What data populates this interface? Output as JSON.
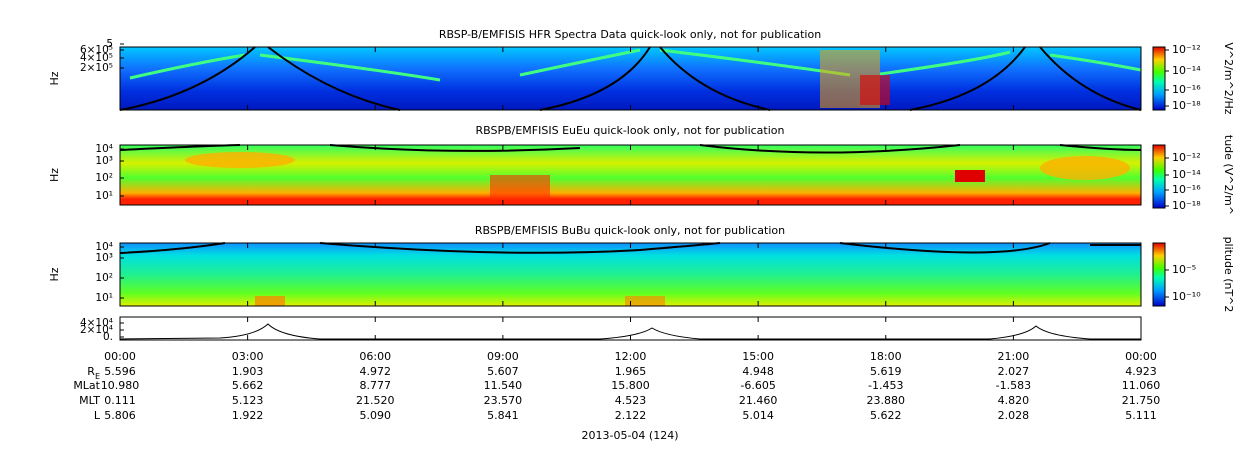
{
  "panels": [
    {
      "title": "RBSP-B/EMFISIS  HFR Spectra Data quick-look only, not for publication",
      "y_label": "Hz",
      "yticks": [
        "5",
        "6×10⁵",
        "4×10⁵",
        "2×10⁵"
      ],
      "colorbar_label": "V^2/m^2/Hz",
      "colorbar_ticks": [
        "10⁻¹²",
        "10⁻¹⁴",
        "10⁻¹⁶",
        "10⁻¹⁸"
      ]
    },
    {
      "title": "RBSPB/EMFISIS  EuEu quick-look only, not for publication",
      "y_label": "Hz",
      "yticks": [
        "10⁴",
        "10³",
        "10²",
        "10¹"
      ],
      "colorbar_label": "tude (V^2/m^",
      "colorbar_ticks": [
        "10⁻¹²",
        "10⁻¹⁴",
        "10⁻¹⁶",
        "10⁻¹⁸"
      ]
    },
    {
      "title": "RBSPB/EMFISIS  BuBu quick-look only, not for publication",
      "y_label": "Hz",
      "yticks": [
        "10⁴",
        "10³",
        "10²",
        "10¹"
      ],
      "colorbar_label": "plitude (nT^2",
      "colorbar_ticks": [
        "10⁻⁵",
        "10⁻¹⁰"
      ]
    },
    {
      "yticks": [
        "4×10⁴",
        "2×10⁴",
        "0."
      ]
    }
  ],
  "time_ticks": [
    "00:00",
    "03:00",
    "06:00",
    "09:00",
    "12:00",
    "15:00",
    "18:00",
    "21:00",
    "00:00"
  ],
  "ephemeris": [
    {
      "label": "R",
      "label_sub": "E",
      "values": [
        "5.596",
        "1.903",
        "4.972",
        "5.607",
        "1.965",
        "4.948",
        "5.619",
        "2.027",
        "4.923"
      ]
    },
    {
      "label": "MLat",
      "values": [
        "10.980",
        "5.662",
        "8.777",
        "11.540",
        "15.800",
        "-6.605",
        "-1.453",
        "-1.583",
        "11.060"
      ]
    },
    {
      "label": "MLT",
      "values": [
        "0.111",
        "5.123",
        "21.520",
        "23.570",
        "4.523",
        "21.460",
        "23.880",
        "4.820",
        "21.750"
      ]
    },
    {
      "label": "L",
      "values": [
        "5.806",
        "1.922",
        "5.090",
        "5.841",
        "2.122",
        "5.014",
        "5.622",
        "2.028",
        "5.111"
      ]
    }
  ],
  "date": "2013-05-04 (124)"
}
